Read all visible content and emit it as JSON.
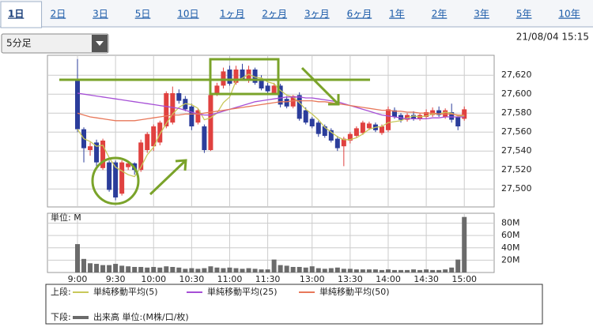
{
  "tabs": [
    "1日",
    "2日",
    "3日",
    "5日",
    "10日",
    "1ヶ月",
    "2ヶ月",
    "3ヶ月",
    "6ヶ月",
    "1年",
    "2年",
    "3年",
    "5年",
    "10年"
  ],
  "interval_select": "5分足",
  "timestamp": "21/08/04 15:15",
  "legend": {
    "upper_label": "上段:",
    "lower_label": "下段:"
  },
  "chart_data": [
    {
      "type": "candlestick",
      "up_color": "#e0413f",
      "down_color": "#2b3d9b",
      "grid": true,
      "ylim": [
        27481,
        27641
      ],
      "yticks": [
        {
          "value": 27500,
          "label": "27,500"
        },
        {
          "value": 27520,
          "label": "27,520"
        },
        {
          "value": 27540,
          "label": "27,540"
        },
        {
          "value": 27560,
          "label": "27,560"
        },
        {
          "value": 27580,
          "label": "27,580"
        },
        {
          "value": 27600,
          "label": "27,600"
        },
        {
          "value": 27620,
          "label": "27,620"
        }
      ],
      "open": [
        27616,
        27563,
        27541,
        27549,
        27522,
        27528,
        27528,
        27495,
        27523,
        27527,
        27520,
        27541,
        27545,
        27549,
        27566,
        27570,
        27601,
        27595,
        27587,
        27570,
        27566,
        27541,
        27601,
        27609,
        27626,
        27612,
        27626,
        27616,
        27626,
        27616,
        27609,
        27601,
        27609,
        27595,
        27587,
        27599,
        27583,
        27574,
        27570,
        27566,
        27562,
        27553,
        27545,
        27551,
        27556,
        27559,
        27564,
        27568,
        27559,
        27562,
        27583,
        27578,
        27573,
        27578,
        27574,
        27576,
        27578,
        27583,
        27576,
        27581,
        27576,
        27574
      ],
      "high": [
        27637,
        27565,
        27549,
        27552,
        27553,
        27530,
        27530,
        27530,
        27528,
        27528,
        27552,
        27560,
        27568,
        27572,
        27603,
        27608,
        27605,
        27598,
        27590,
        27585,
        27568,
        27601,
        27612,
        27628,
        27630,
        27630,
        27632,
        27630,
        27628,
        27620,
        27612,
        27612,
        27611,
        27598,
        27599,
        27602,
        27586,
        27576,
        27572,
        27568,
        27564,
        27556,
        27555,
        27560,
        27566,
        27572,
        27571,
        27570,
        27568,
        27587,
        27586,
        27580,
        27580,
        27582,
        27580,
        27584,
        27586,
        27587,
        27585,
        27590,
        27578,
        27587
      ],
      "low": [
        27560,
        27528,
        27535,
        27524,
        27520,
        27497,
        27488,
        27493,
        27520,
        27515,
        27518,
        27538,
        27540,
        27546,
        27564,
        27568,
        27590,
        27582,
        27562,
        27568,
        27538,
        27540,
        27598,
        27606,
        27609,
        27610,
        27614,
        27612,
        27610,
        27604,
        27601,
        27599,
        27586,
        27585,
        27585,
        27572,
        27568,
        27564,
        27555,
        27554,
        27549,
        27540,
        27524,
        27548,
        27554,
        27557,
        27562,
        27560,
        27557,
        27560,
        27574,
        27570,
        27571,
        27572,
        27572,
        27574,
        27576,
        27576,
        27574,
        27570,
        27562,
        27572
      ],
      "close": [
        27563,
        27543,
        27545,
        27528,
        27551,
        27499,
        27491,
        27528,
        27527,
        27520,
        27549,
        27558,
        27566,
        27570,
        27601,
        27601,
        27593,
        27584,
        27566,
        27583,
        27541,
        27599,
        27609,
        27624,
        27611,
        27626,
        27616,
        27626,
        27612,
        27606,
        27603,
        27609,
        27589,
        27587,
        27598,
        27574,
        27570,
        27566,
        27558,
        27556,
        27551,
        27543,
        27553,
        27558,
        27564,
        27570,
        27569,
        27562,
        27566,
        27584,
        27576,
        27573,
        27578,
        27574,
        27578,
        27581,
        27583,
        27578,
        27583,
        27573,
        27566,
        27584
      ],
      "series": [
        {
          "name": "単純移動平均(5)",
          "color": "#c8c85a",
          "values": [
            27563,
            27553,
            27550,
            27545,
            27546,
            27533,
            27523,
            27519,
            27515,
            27513,
            27523,
            27536,
            27544,
            27558,
            27569,
            27579,
            27586,
            27590,
            27589,
            27585,
            27573,
            27575,
            27580,
            27591,
            27597,
            27614,
            27617,
            27621,
            27618,
            27617,
            27613,
            27611,
            27604,
            27599,
            27597,
            27591,
            27584,
            27579,
            27573,
            27565,
            27560,
            27555,
            27552,
            27552,
            27554,
            27558,
            27563,
            27565,
            27566,
            27570,
            27571,
            27572,
            27575,
            27577,
            27576,
            27577,
            27579,
            27579,
            27581,
            27580,
            27577,
            27577
          ]
        },
        {
          "name": "単純移動平均(25)",
          "color": "#a64fd6",
          "values": [
            27601,
            27600,
            27599,
            27598,
            27597,
            27596,
            27595,
            27594,
            27593,
            27592,
            27591,
            27590,
            27589,
            27588,
            27587,
            27586,
            27585,
            27583,
            27581,
            27579,
            27578,
            27578,
            27580,
            27582,
            27584,
            27586,
            27588,
            27590,
            27592,
            27593,
            27594,
            27595,
            27596,
            27597,
            27597,
            27597,
            27596,
            27596,
            27595,
            27594,
            27593,
            27592,
            27590,
            27588,
            27586,
            27584,
            27582,
            27580,
            27578,
            27577,
            27576,
            27575,
            27574,
            27574,
            27574,
            27574,
            27575,
            27575,
            27576,
            27576,
            27576,
            27576
          ]
        },
        {
          "name": "単純移動平均(50)",
          "color": "#e8785a",
          "values": [
            27580,
            27578,
            27576,
            27575,
            27574,
            27573,
            27572,
            27572,
            27572,
            27572,
            27573,
            27574,
            27575,
            27576,
            27577,
            27578,
            27578,
            27579,
            27579,
            27579,
            27580,
            27581,
            27582,
            27583,
            27584,
            27585,
            27586,
            27587,
            27588,
            27589,
            27590,
            27591,
            27592,
            27592,
            27593,
            27593,
            27593,
            27593,
            27592,
            27592,
            27591,
            27590,
            27589,
            27588,
            27587,
            27586,
            27585,
            27584,
            27583,
            27583,
            27582,
            27582,
            27581,
            27581,
            27580,
            27580,
            27580,
            27579,
            27579,
            27579,
            27578,
            27578
          ]
        }
      ]
    },
    {
      "type": "bar",
      "unit_label": "単位: M",
      "color": "#6b6b6b",
      "grid": true,
      "ylim": [
        0,
        96
      ],
      "yticks": [
        {
          "value": 20,
          "label": "20M"
        },
        {
          "value": 40,
          "label": "40M"
        },
        {
          "value": 60,
          "label": "60M"
        },
        {
          "value": 80,
          "label": "80M"
        }
      ],
      "categories": [
        "9:00",
        null,
        null,
        null,
        null,
        null,
        "9:30",
        null,
        null,
        null,
        null,
        null,
        "10:00",
        null,
        null,
        null,
        null,
        null,
        "10:30",
        null,
        null,
        null,
        null,
        null,
        "11:00",
        null,
        null,
        null,
        null,
        null,
        "11:30",
        null,
        null,
        null,
        null,
        null,
        null,
        "13:00",
        null,
        null,
        null,
        null,
        null,
        "13:30",
        null,
        null,
        null,
        null,
        null,
        "14:00",
        null,
        null,
        null,
        null,
        null,
        "14:30",
        null,
        null,
        null,
        null,
        null,
        "15:00"
      ],
      "series": [
        {
          "name": "出来高 単位:(M株/口/枚)",
          "color": "#6b6b6b",
          "values": [
            46,
            22,
            15,
            14,
            12,
            12,
            14,
            11,
            10,
            9,
            9,
            8,
            9,
            8,
            10,
            9,
            8,
            6,
            7,
            6,
            7,
            10,
            8,
            7,
            8,
            7,
            6,
            7,
            6,
            5,
            5,
            21,
            12,
            11,
            9,
            9,
            8,
            10,
            7,
            6,
            7,
            8,
            6,
            6,
            5,
            5,
            5,
            5,
            4,
            5,
            4,
            4,
            4,
            5,
            4,
            5,
            4,
            4,
            5,
            8,
            21,
            90
          ]
        }
      ]
    }
  ]
}
